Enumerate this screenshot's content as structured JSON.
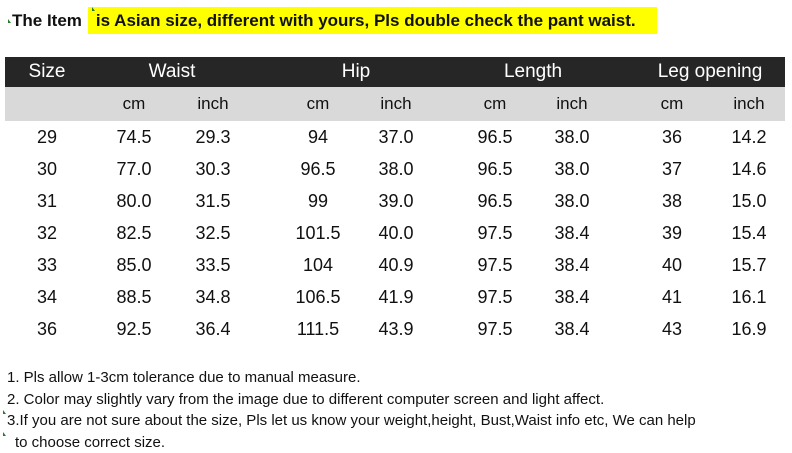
{
  "title": {
    "prefix": "The Item",
    "highlight": "is Asian size, different with yours, Pls double check the pant waist.",
    "highlight_color": "#ffff00"
  },
  "table": {
    "headers": [
      "Size",
      "Waist",
      "Hip",
      "Length",
      "Leg opening"
    ],
    "subheaders": [
      "",
      "cm",
      "inch",
      "cm",
      "inch",
      "cm",
      "inch",
      "cm",
      "inch"
    ],
    "rows": [
      [
        "29",
        "74.5",
        "29.3",
        "94",
        "37.0",
        "96.5",
        "38.0",
        "36",
        "14.2"
      ],
      [
        "30",
        "77.0",
        "30.3",
        "96.5",
        "38.0",
        "96.5",
        "38.0",
        "37",
        "14.6"
      ],
      [
        "31",
        "80.0",
        "31.5",
        "99",
        "39.0",
        "96.5",
        "38.0",
        "38",
        "15.0"
      ],
      [
        "32",
        "82.5",
        "32.5",
        "101.5",
        "40.0",
        "97.5",
        "38.4",
        "39",
        "15.4"
      ],
      [
        "33",
        "85.0",
        "33.5",
        "104",
        "40.9",
        "97.5",
        "38.4",
        "40",
        "15.7"
      ],
      [
        "34",
        "88.5",
        "34.8",
        "106.5",
        "41.9",
        "97.5",
        "38.4",
        "41",
        "16.1"
      ],
      [
        "36",
        "92.5",
        "36.4",
        "111.5",
        "43.9",
        "97.5",
        "38.4",
        "43",
        "16.9"
      ]
    ]
  },
  "notes": [
    "1. Pls allow 1-3cm tolerance due to manual measure.",
    "2. Color may slightly vary from the image due to different computer screen and light affect.",
    "3.If you are not sure about the size, Pls let us know your weight,height, Bust,Waist info etc, We can help",
    "to choose correct size."
  ]
}
